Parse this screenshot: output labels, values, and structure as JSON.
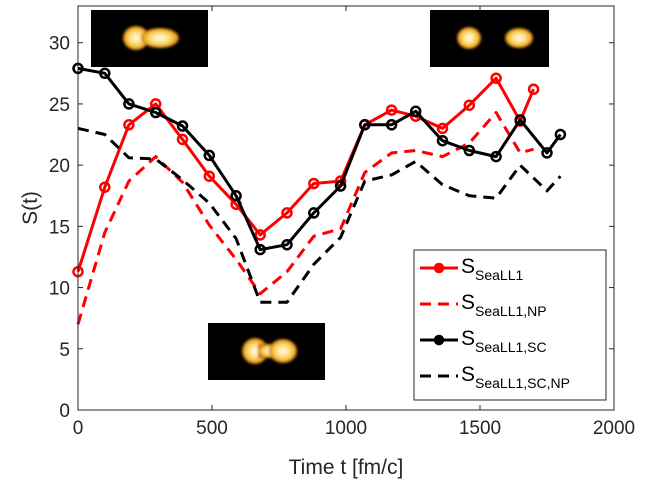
{
  "chart_data": {
    "type": "line",
    "title": "",
    "xlabel": "Time t [fm/c]",
    "ylabel": "S(t)",
    "xlim": [
      0,
      2000
    ],
    "ylim": [
      0,
      33
    ],
    "xticks": [
      0,
      500,
      1000,
      1500,
      2000
    ],
    "yticks": [
      0,
      5,
      10,
      15,
      20,
      25,
      30
    ],
    "xtick_labels": [
      "0",
      "500",
      "1000",
      "1500",
      "2000"
    ],
    "ytick_labels": [
      "0",
      "5",
      "10",
      "15",
      "20",
      "25",
      "30"
    ],
    "grid": false,
    "legend_position": "bottom-right",
    "series": [
      {
        "name": "S_SeaLL1",
        "label_main": "S",
        "label_sub": "SeaLL1",
        "color": "#ff0000",
        "style": "solid-markers",
        "x": [
          0,
          100,
          190,
          290,
          390,
          490,
          590,
          680,
          780,
          880,
          980,
          1070,
          1170,
          1260,
          1360,
          1460,
          1560,
          1650,
          1700
        ],
        "y": [
          11.3,
          18.2,
          23.3,
          25.0,
          22.1,
          19.1,
          16.8,
          14.3,
          16.1,
          18.5,
          18.7,
          23.3,
          24.5,
          24.0,
          23.0,
          24.9,
          27.1,
          23.6,
          26.2
        ]
      },
      {
        "name": "S_SeaLL1,NP",
        "label_main": "S",
        "label_sub": "SeaLL1,NP",
        "color": "#ff0000",
        "style": "dashed",
        "x": [
          0,
          100,
          190,
          290,
          390,
          490,
          590,
          680,
          780,
          880,
          980,
          1070,
          1170,
          1260,
          1360,
          1460,
          1560,
          1650,
          1700
        ],
        "y": [
          7.0,
          14.5,
          18.7,
          20.7,
          18.6,
          15.1,
          12.3,
          9.5,
          11.3,
          14.2,
          14.8,
          19.4,
          21.0,
          21.2,
          20.7,
          21.8,
          24.3,
          21.0,
          21.3
        ]
      },
      {
        "name": "S_SeaLL1,SC",
        "label_main": "S",
        "label_sub": "SeaLL1,SC",
        "color": "#000000",
        "style": "solid-markers",
        "x": [
          0,
          100,
          190,
          290,
          390,
          490,
          590,
          680,
          780,
          880,
          980,
          1070,
          1170,
          1260,
          1360,
          1460,
          1560,
          1650,
          1750,
          1800
        ],
        "y": [
          27.9,
          27.5,
          25.0,
          24.3,
          23.2,
          20.8,
          17.5,
          13.1,
          13.5,
          16.1,
          18.3,
          23.3,
          23.3,
          24.4,
          22.0,
          21.2,
          20.7,
          23.7,
          21.0,
          22.5
        ]
      },
      {
        "name": "S_SeaLL1,SC,NP",
        "label_main": "S",
        "label_sub": "SeaLL1,SC,NP",
        "color": "#000000",
        "style": "dashed",
        "x": [
          0,
          100,
          190,
          290,
          390,
          490,
          590,
          680,
          780,
          880,
          980,
          1070,
          1170,
          1260,
          1360,
          1460,
          1560,
          1650,
          1750,
          1800
        ],
        "y": [
          23.0,
          22.5,
          20.6,
          20.5,
          18.8,
          16.9,
          14.0,
          8.8,
          8.8,
          11.9,
          14.1,
          18.7,
          19.2,
          20.3,
          18.4,
          17.5,
          17.3,
          20.0,
          17.9,
          19.1
        ]
      }
    ],
    "insets": [
      {
        "description": "density-elongated",
        "position": "top-left",
        "blob_color": "#f3c23a"
      },
      {
        "description": "density-separated",
        "position": "top-right",
        "blob_color": "#f3c23a"
      },
      {
        "description": "density-necked",
        "position": "bottom-center",
        "blob_color": "#f3c23a"
      }
    ]
  }
}
